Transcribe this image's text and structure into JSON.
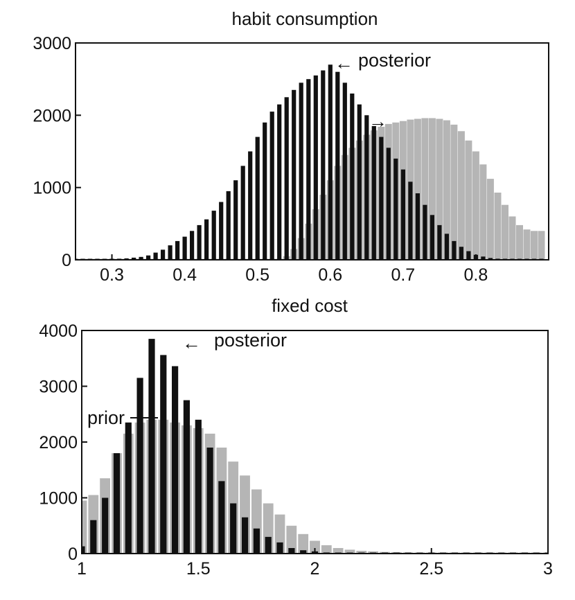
{
  "chart_data": [
    {
      "type": "bar",
      "title": "habit consumption",
      "xlabel": "",
      "ylabel": "",
      "xlim": [
        0.25,
        0.9
      ],
      "ylim": [
        0,
        3000
      ],
      "xticks": [
        "0.3",
        "0.4",
        "0.5",
        "0.6",
        "0.7",
        "0.8"
      ],
      "yticks": [
        "0",
        "1000",
        "2000",
        "3000"
      ],
      "grid": false,
      "series": [
        {
          "name": "posterior",
          "color": "#111111",
          "x": [
            0.25,
            0.26,
            0.27,
            0.28,
            0.29,
            0.3,
            0.31,
            0.32,
            0.33,
            0.34,
            0.35,
            0.36,
            0.37,
            0.38,
            0.39,
            0.4,
            0.41,
            0.42,
            0.43,
            0.44,
            0.45,
            0.46,
            0.47,
            0.48,
            0.49,
            0.5,
            0.51,
            0.52,
            0.53,
            0.54,
            0.55,
            0.56,
            0.57,
            0.58,
            0.59,
            0.6,
            0.61,
            0.62,
            0.63,
            0.64,
            0.65,
            0.66,
            0.67,
            0.68,
            0.69,
            0.7,
            0.71,
            0.72,
            0.73,
            0.74,
            0.75,
            0.76,
            0.77,
            0.78,
            0.79,
            0.8,
            0.81,
            0.82,
            0.83,
            0.84,
            0.85,
            0.86,
            0.87,
            0.88,
            0.89
          ],
          "values": [
            5,
            5,
            5,
            5,
            5,
            10,
            15,
            20,
            30,
            40,
            60,
            100,
            140,
            200,
            260,
            320,
            400,
            480,
            560,
            680,
            800,
            950,
            1100,
            1300,
            1500,
            1700,
            1900,
            2050,
            2150,
            2250,
            2350,
            2450,
            2500,
            2550,
            2620,
            2700,
            2600,
            2450,
            2300,
            2150,
            2000,
            1850,
            1700,
            1550,
            1400,
            1250,
            1080,
            920,
            760,
            620,
            480,
            360,
            260,
            180,
            120,
            70,
            45,
            25,
            15,
            10,
            8,
            5,
            5,
            5,
            5
          ]
        },
        {
          "name": "prior",
          "color": "#a8a8a8",
          "x": [
            0.25,
            0.26,
            0.27,
            0.28,
            0.29,
            0.3,
            0.31,
            0.32,
            0.33,
            0.34,
            0.35,
            0.36,
            0.37,
            0.38,
            0.39,
            0.4,
            0.41,
            0.42,
            0.43,
            0.44,
            0.45,
            0.46,
            0.47,
            0.48,
            0.49,
            0.5,
            0.51,
            0.52,
            0.53,
            0.54,
            0.55,
            0.56,
            0.57,
            0.58,
            0.59,
            0.6,
            0.61,
            0.62,
            0.63,
            0.64,
            0.65,
            0.66,
            0.67,
            0.68,
            0.69,
            0.7,
            0.71,
            0.72,
            0.73,
            0.74,
            0.75,
            0.76,
            0.77,
            0.78,
            0.79,
            0.8,
            0.81,
            0.82,
            0.83,
            0.84,
            0.85,
            0.86,
            0.87,
            0.88,
            0.89
          ],
          "values": [
            0,
            0,
            0,
            0,
            0,
            0,
            0,
            0,
            0,
            0,
            0,
            0,
            0,
            0,
            0,
            0,
            0,
            0,
            0,
            0,
            0,
            0,
            0,
            0,
            0,
            0,
            0,
            0,
            0,
            50,
            150,
            300,
            500,
            700,
            900,
            1100,
            1300,
            1450,
            1550,
            1650,
            1730,
            1790,
            1840,
            1880,
            1900,
            1920,
            1940,
            1950,
            1960,
            1960,
            1950,
            1930,
            1870,
            1780,
            1650,
            1500,
            1320,
            1120,
            930,
            760,
            600,
            480,
            420,
            400,
            400
          ]
        }
      ],
      "annotations": [
        {
          "text": "posterior"
        },
        {
          "text": "←"
        },
        {
          "text": "→"
        }
      ]
    },
    {
      "type": "bar",
      "title": "fixed cost",
      "xlabel": "",
      "ylabel": "",
      "xlim": [
        1,
        3
      ],
      "ylim": [
        0,
        4000
      ],
      "xticks": [
        "1",
        "1.5",
        "2",
        "2.5",
        "3"
      ],
      "yticks": [
        "0",
        "1000",
        "2000",
        "3000",
        "4000"
      ],
      "grid": false,
      "series": [
        {
          "name": "posterior",
          "color": "#111111",
          "x": [
            1.0,
            1.05,
            1.1,
            1.15,
            1.2,
            1.25,
            1.3,
            1.35,
            1.4,
            1.45,
            1.5,
            1.55,
            1.6,
            1.65,
            1.7,
            1.75,
            1.8,
            1.85,
            1.9,
            1.95,
            2.0,
            2.05,
            2.1,
            2.15,
            2.2,
            2.25,
            2.3,
            2.35,
            2.4,
            2.45,
            2.5,
            2.55,
            2.6,
            2.65,
            2.7,
            2.75,
            2.8,
            2.85,
            2.9,
            2.95,
            3.0
          ],
          "values": [
            130,
            600,
            1000,
            1800,
            2350,
            3150,
            3850,
            3560,
            3360,
            2750,
            2400,
            1900,
            1300,
            900,
            650,
            450,
            300,
            200,
            100,
            60,
            40,
            20,
            10,
            10,
            5,
            5,
            0,
            0,
            0,
            0,
            0,
            0,
            0,
            0,
            0,
            0,
            0,
            0,
            0,
            0,
            0
          ]
        },
        {
          "name": "prior",
          "color": "#a8a8a8",
          "x": [
            1.0,
            1.05,
            1.1,
            1.15,
            1.2,
            1.25,
            1.3,
            1.35,
            1.4,
            1.45,
            1.5,
            1.55,
            1.6,
            1.65,
            1.7,
            1.75,
            1.8,
            1.85,
            1.9,
            1.95,
            2.0,
            2.05,
            2.1,
            2.15,
            2.2,
            2.25,
            2.3,
            2.35,
            2.4,
            2.45,
            2.5,
            2.55,
            2.6,
            2.65,
            2.7,
            2.75,
            2.8,
            2.85,
            2.9,
            2.95,
            3.0
          ],
          "values": [
            950,
            1050,
            1350,
            1800,
            2150,
            2350,
            2400,
            2400,
            2350,
            2300,
            2250,
            2150,
            1900,
            1650,
            1400,
            1150,
            900,
            700,
            500,
            350,
            230,
            150,
            100,
            70,
            50,
            40,
            30,
            25,
            20,
            15,
            10,
            10,
            10,
            10,
            10,
            10,
            10,
            10,
            10,
            10,
            10
          ]
        }
      ],
      "annotations": [
        {
          "text": "posterior"
        },
        {
          "text": "←"
        },
        {
          "text": "prior"
        }
      ]
    }
  ]
}
